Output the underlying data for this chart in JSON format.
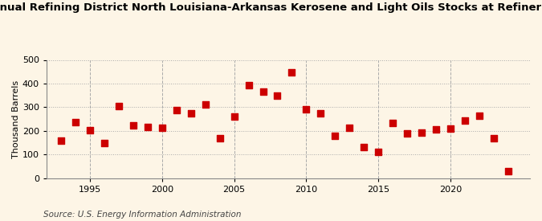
{
  "title": "Annual Refining District North Louisiana-Arkansas Kerosene and Light Oils Stocks at Refineries",
  "ylabel": "Thousand Barrels",
  "source": "Source: U.S. Energy Information Administration",
  "all_years": [
    1993,
    1994,
    1995,
    1996,
    1997,
    1998,
    1999,
    2000,
    2001,
    2002,
    2003,
    2004,
    2005,
    2006,
    2007,
    2008,
    2009,
    2010,
    2011,
    2012,
    2013,
    2014,
    2015,
    2016,
    2017,
    2018,
    2019,
    2020,
    2021,
    2022,
    2023,
    2024
  ],
  "all_values": [
    158,
    238,
    203,
    148,
    305,
    222,
    218,
    213,
    287,
    273,
    310,
    170,
    260,
    393,
    365,
    348,
    447,
    290,
    275,
    179,
    212,
    133,
    110,
    234,
    190,
    193,
    206,
    208,
    245,
    263,
    170,
    30
  ],
  "marker_color": "#cc0000",
  "marker_size": 28,
  "bg_color": "#fdf5e6",
  "grid_color": "#aaaaaa",
  "ylim": [
    0,
    500
  ],
  "yticks": [
    0,
    100,
    200,
    300,
    400,
    500
  ],
  "xlim": [
    1992.0,
    2025.5
  ],
  "xticks": [
    1995,
    2000,
    2005,
    2010,
    2015,
    2020
  ],
  "title_fontsize": 9.5,
  "axis_fontsize": 8,
  "source_fontsize": 7.5
}
